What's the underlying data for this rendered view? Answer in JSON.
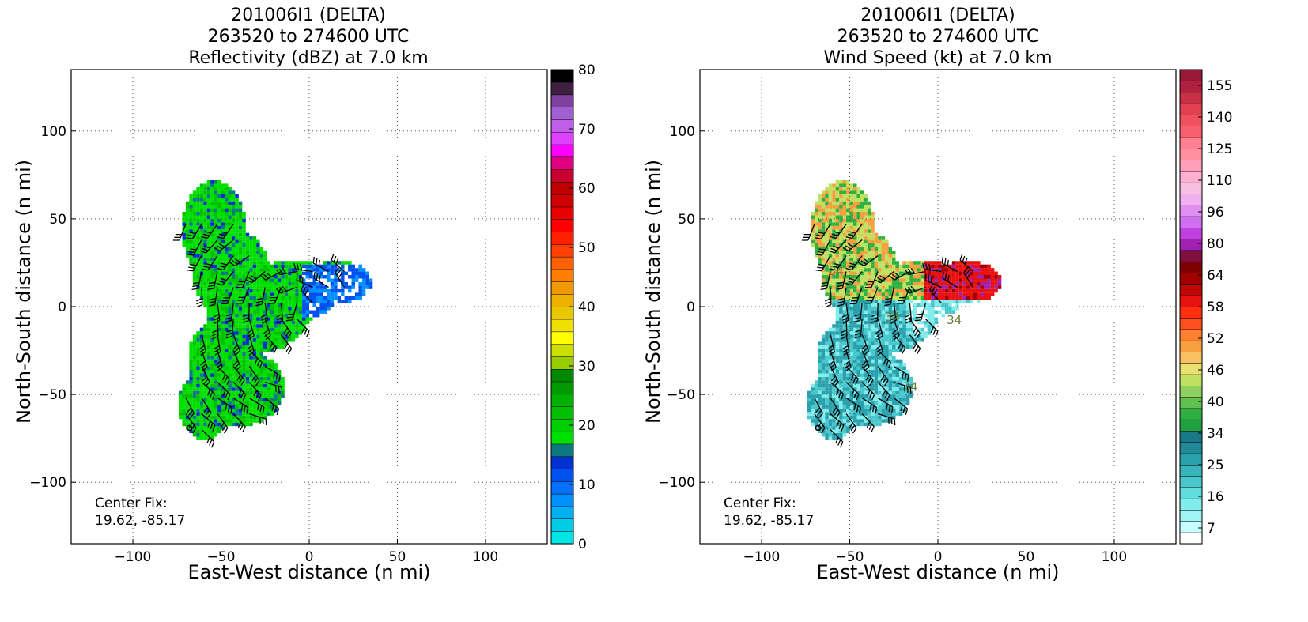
{
  "chart_data": [
    {
      "type": "heatmap",
      "title_lines": [
        "201006I1 (DELTA)",
        "263520 to 274600 UTC",
        "Reflectivity (dBZ) at 7.0 km"
      ],
      "xlabel": "East-West distance (n mi)",
      "ylabel": "North-South distance (n mi)",
      "xlim": [
        -135,
        135
      ],
      "ylim": [
        -135,
        135
      ],
      "xticks": [
        -100,
        -50,
        0,
        50,
        100
      ],
      "yticks": [
        -100,
        -50,
        0,
        50,
        100
      ],
      "grid": true,
      "annotation_lines": [
        "Center Fix:",
        "19.62, -85.17"
      ],
      "colorbar": {
        "tick_labels": [
          "0",
          "10",
          "20",
          "30",
          "40",
          "50",
          "60",
          "70",
          "80"
        ],
        "tick_values": [
          0,
          10,
          20,
          30,
          40,
          50,
          60,
          70,
          80
        ],
        "min": 0,
        "max": 80,
        "colors": [
          "#00e6e6",
          "#00cce6",
          "#00b0f0",
          "#0090ff",
          "#0070ff",
          "#0050f0",
          "#0030d0",
          "#0a7a80",
          "#00e000",
          "#00d000",
          "#00c000",
          "#00b000",
          "#009a00",
          "#008800",
          "#9acd00",
          "#cce000",
          "#ffff00",
          "#f0e000",
          "#e8c800",
          "#f0b000",
          "#f09a00",
          "#ff8000",
          "#ff6000",
          "#ff4000",
          "#ff2000",
          "#ff0000",
          "#e80000",
          "#d00000",
          "#c00000",
          "#c80030",
          "#e00080",
          "#ff00ff",
          "#e040ff",
          "#c060e8",
          "#a060d0",
          "#8040a0",
          "#402040",
          "#000000"
        ]
      }
    },
    {
      "type": "heatmap",
      "title_lines": [
        "201006I1 (DELTA)",
        "263520 to 274600 UTC",
        "Wind Speed (kt) at 7.0 km"
      ],
      "xlabel": "East-West distance (n mi)",
      "ylabel": "North-South distance (n mi)",
      "xlim": [
        -135,
        135
      ],
      "ylim": [
        -135,
        135
      ],
      "xticks": [
        -100,
        -50,
        0,
        50,
        100
      ],
      "yticks": [
        -100,
        -50,
        0,
        50,
        100
      ],
      "grid": true,
      "annotation_lines": [
        "Center Fix:",
        "19.62, -85.17"
      ],
      "contour_labels": [
        "34",
        "34",
        "34",
        "34"
      ],
      "colorbar": {
        "tick_labels": [
          "7",
          "16",
          "25",
          "34",
          "40",
          "46",
          "52",
          "58",
          "64",
          "80",
          "96",
          "110",
          "125",
          "140",
          "155"
        ],
        "colors": [
          "#ffffff",
          "#c8ffff",
          "#a0f4f4",
          "#80ecec",
          "#60dcdc",
          "#48c8cc",
          "#38b4bc",
          "#2aa0ac",
          "#208898",
          "#187888",
          "#20a040",
          "#30b040",
          "#60c050",
          "#90d060",
          "#c0e060",
          "#e8e070",
          "#f8c060",
          "#f8a040",
          "#ff8030",
          "#ff5020",
          "#ff3010",
          "#e81010",
          "#c00808",
          "#a00000",
          "#800000",
          "#801040",
          "#a020b0",
          "#c040e0",
          "#d070f0",
          "#e090f0",
          "#f0b0f0",
          "#f8c0e0",
          "#ffb0d0",
          "#ffa0b8",
          "#ff90a0",
          "#ff8090",
          "#f86070",
          "#f05060",
          "#e04050",
          "#c83048",
          "#b02040",
          "#981838"
        ]
      }
    }
  ]
}
